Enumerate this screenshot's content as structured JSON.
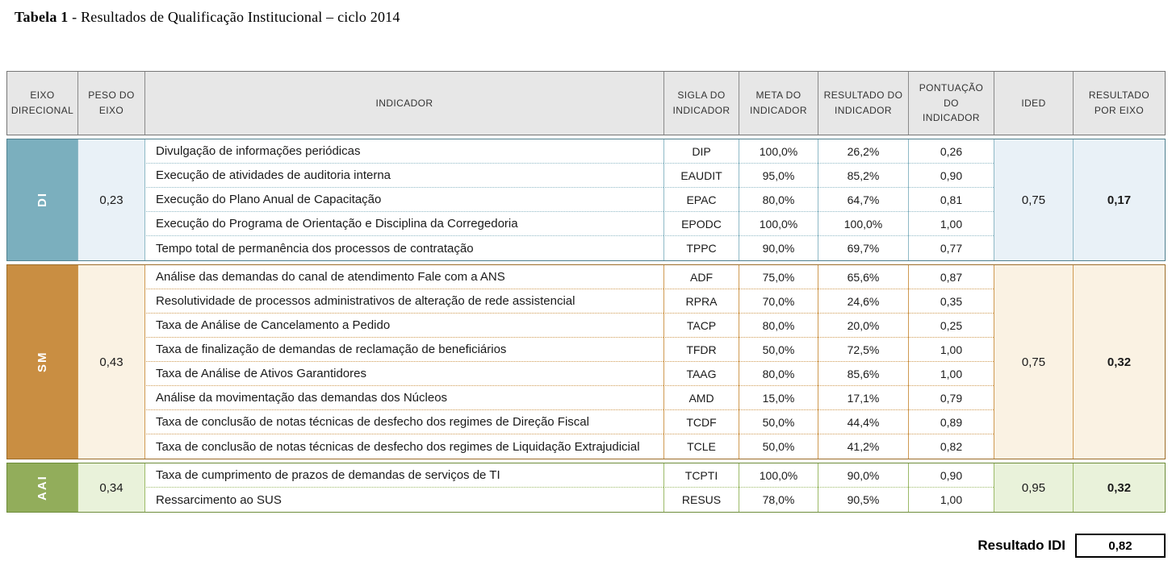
{
  "title": {
    "bold": "Tabela 1",
    "rest": " - Resultados  de Qualificação Institucional  – ciclo 2014"
  },
  "table": {
    "headers": [
      "EIXO DIRECIONAL",
      "PESO DO EIXO",
      "INDICADOR",
      "SIGLA DO INDICADOR",
      "META DO INDICADOR",
      "RESULTADO DO INDICADOR",
      "PONTUAÇÃO DO INDICADOR",
      "IDED",
      "RESULTADO POR EIXO"
    ],
    "groups": [
      {
        "eixo": "DI",
        "peso": "0,23",
        "ided": "0,75",
        "resultado_por_eixo": "0,17",
        "colors": {
          "accent": "#7bafbe",
          "tint": "#e9f1f7",
          "line": "#8fb9c6",
          "dark": "#50808e"
        },
        "rows": [
          {
            "indicador": "Divulgação de informações periódicas",
            "sigla": "DIP",
            "meta": "100,0%",
            "resultado": "26,2%",
            "pontuacao": "0,26"
          },
          {
            "indicador": "Execução de atividades de auditoria interna",
            "sigla": "EAUDIT",
            "meta": "95,0%",
            "resultado": "85,2%",
            "pontuacao": "0,90"
          },
          {
            "indicador": "Execução do Plano Anual de Capacitação",
            "sigla": "EPAC",
            "meta": "80,0%",
            "resultado": "64,7%",
            "pontuacao": "0,81"
          },
          {
            "indicador": "Execução do Programa de Orientação e Disciplina da Corregedoria",
            "sigla": "EPODC",
            "meta": "100,0%",
            "resultado": "100,0%",
            "pontuacao": "1,00"
          },
          {
            "indicador": "Tempo total de permanência dos processos de contratação",
            "sigla": "TPPC",
            "meta": "90,0%",
            "resultado": "69,7%",
            "pontuacao": "0,77"
          }
        ]
      },
      {
        "eixo": "SM",
        "peso": "0,43",
        "ided": "0,75",
        "resultado_por_eixo": "0,32",
        "colors": {
          "accent": "#c98e42",
          "tint": "#faf2e3",
          "line": "#cf9a52",
          "dark": "#9c6d2a"
        },
        "rows": [
          {
            "indicador": "Análise das demandas do canal de atendimento Fale com a ANS",
            "sigla": "ADF",
            "meta": "75,0%",
            "resultado": "65,6%",
            "pontuacao": "0,87"
          },
          {
            "indicador": "Resolutividade de processos administrativos de alteração de rede assistencial",
            "sigla": "RPRA",
            "meta": "70,0%",
            "resultado": "24,6%",
            "pontuacao": "0,35"
          },
          {
            "indicador": "Taxa de Análise de Cancelamento a Pedido",
            "sigla": "TACP",
            "meta": "80,0%",
            "resultado": "20,0%",
            "pontuacao": "0,25"
          },
          {
            "indicador": "Taxa de finalização de demandas de reclamação de beneficiários",
            "sigla": "TFDR",
            "meta": "50,0%",
            "resultado": "72,5%",
            "pontuacao": "1,00"
          },
          {
            "indicador": "Taxa de Análise de Ativos Garantidores",
            "sigla": "TAAG",
            "meta": "80,0%",
            "resultado": "85,6%",
            "pontuacao": "1,00"
          },
          {
            "indicador": "Análise da movimentação das demandas dos Núcleos",
            "sigla": "AMD",
            "meta": "15,0%",
            "resultado": "17,1%",
            "pontuacao": "0,79"
          },
          {
            "indicador": "Taxa de conclusão de notas técnicas de desfecho dos regimes de Direção Fiscal",
            "sigla": "TCDF",
            "meta": "50,0%",
            "resultado": "44,4%",
            "pontuacao": "0,89"
          },
          {
            "indicador": "Taxa de conclusão de notas técnicas de desfecho dos regimes de Liquidação Extrajudicial",
            "sigla": "TCLE",
            "meta": "50,0%",
            "resultado": "41,2%",
            "pontuacao": "0,82"
          }
        ]
      },
      {
        "eixo": "AAI",
        "peso": "0,34",
        "ided": "0,95",
        "resultado_por_eixo": "0,32",
        "colors": {
          "accent": "#92ad5b",
          "tint": "#e9f2da",
          "line": "#9cba68",
          "dark": "#6d8c3a"
        },
        "rows": [
          {
            "indicador": "Taxa de cumprimento de prazos de demandas de serviços de TI",
            "sigla": "TCPTI",
            "meta": "100,0%",
            "resultado": "90,0%",
            "pontuacao": "0,90"
          },
          {
            "indicador": "Ressarcimento ao SUS",
            "sigla": "RESUS",
            "meta": "78,0%",
            "resultado": "90,5%",
            "pontuacao": "1,00"
          }
        ]
      }
    ],
    "footer": {
      "label": "Resultado IDI",
      "value": "0,82"
    }
  }
}
